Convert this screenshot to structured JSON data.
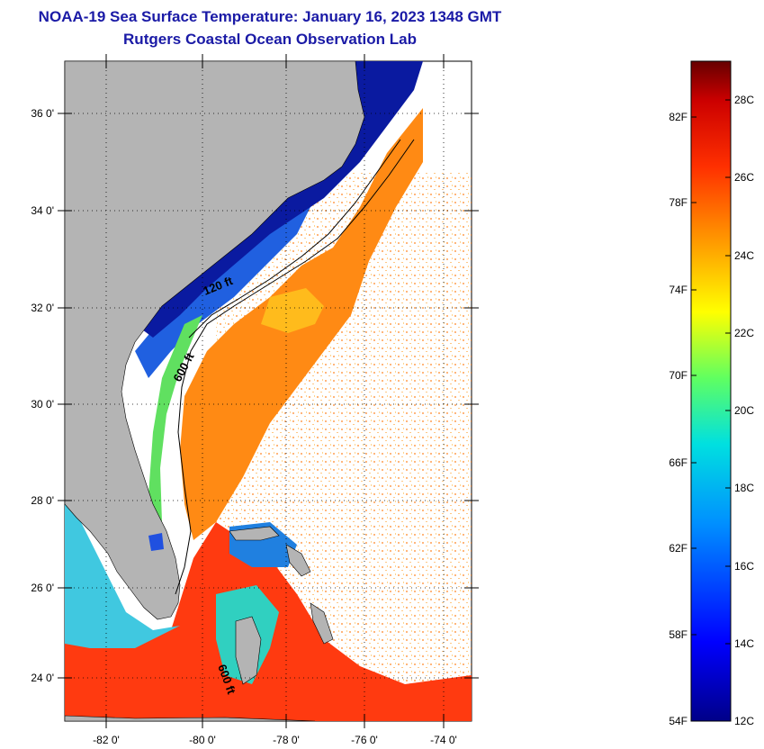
{
  "title": {
    "line1": "NOAA-19 Sea Surface Temperature:  January 16, 2023 1348 GMT",
    "line2": "Rutgers Coastal Ocean Observation Lab"
  },
  "map": {
    "lat_labels": [
      "36 0'",
      "34 0'",
      "32 0'",
      "30 0'",
      "28 0'",
      "26 0'",
      "24 0'"
    ],
    "lon_labels": [
      "-82 0'",
      "-80 0'",
      "-78 0'",
      "-76 0'",
      "-74 0'"
    ],
    "isobath_labels": [
      "120 ft",
      "600 ft",
      "600 ft"
    ],
    "colors": {
      "land": "#b4b4b4",
      "cold": "#0a1aa0",
      "warm": "#ff3a10",
      "gulf_stream": "#ff8c14"
    }
  },
  "colorbar": {
    "fahrenheit_labels": [
      "82F",
      "78F",
      "74F",
      "70F",
      "66F",
      "62F",
      "58F",
      "54F"
    ],
    "celsius_labels": [
      "28C",
      "26C",
      "24C",
      "22C",
      "20C",
      "18C",
      "16C",
      "14C",
      "12C"
    ]
  }
}
